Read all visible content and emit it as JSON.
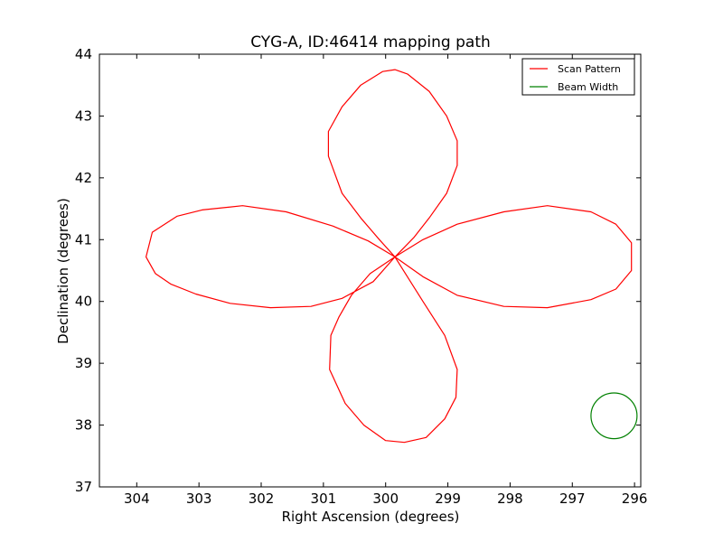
{
  "chart_data": {
    "type": "line",
    "title": "CYG-A, ID:46414 mapping path",
    "xlabel": "Right Ascension (degrees)",
    "ylabel": "Declination (degrees)",
    "xlim": [
      304.6,
      295.9
    ],
    "ylim": [
      37,
      44
    ],
    "x_reversed": true,
    "xticks": [
      304,
      303,
      302,
      301,
      300,
      299,
      298,
      297,
      296
    ],
    "yticks": [
      37,
      38,
      39,
      40,
      41,
      42,
      43,
      44
    ],
    "grid": false,
    "legend_position": "top-right",
    "series": [
      {
        "name": "Scan Pattern",
        "color": "#ff0000",
        "style": "line",
        "x": [
          299.85,
          300.28,
          300.85,
          301.6,
          302.3,
          302.95,
          303.35,
          303.75,
          303.85,
          303.7,
          303.45,
          303.05,
          302.5,
          301.85,
          301.2,
          300.7,
          300.2,
          299.85,
          299.55,
          299.3,
          299.02,
          298.85,
          298.85,
          299.02,
          299.3,
          299.65,
          299.85,
          300.05,
          300.4,
          300.7,
          300.92,
          300.92,
          300.7,
          300.4,
          300.1,
          299.85,
          299.4,
          298.85,
          298.1,
          297.4,
          296.7,
          296.3,
          296.05,
          296.05,
          296.3,
          296.7,
          297.4,
          298.1,
          298.85,
          299.4,
          299.85,
          300.25,
          300.55,
          300.75,
          300.88,
          300.9,
          300.65,
          300.35,
          300.0,
          299.7,
          299.35,
          299.05,
          298.87,
          298.85,
          299.05,
          299.4,
          299.85
        ],
        "y": [
          40.72,
          40.98,
          41.22,
          41.45,
          41.55,
          41.48,
          41.38,
          41.12,
          40.72,
          40.45,
          40.28,
          40.12,
          39.97,
          39.9,
          39.92,
          40.05,
          40.32,
          40.72,
          41.03,
          41.35,
          41.75,
          42.2,
          42.6,
          43.0,
          43.4,
          43.68,
          43.75,
          43.72,
          43.5,
          43.15,
          42.75,
          42.35,
          41.75,
          41.35,
          41.0,
          40.72,
          41.0,
          41.25,
          41.45,
          41.55,
          41.45,
          41.25,
          40.95,
          40.5,
          40.2,
          40.03,
          39.9,
          39.92,
          40.1,
          40.4,
          40.72,
          40.45,
          40.1,
          39.75,
          39.45,
          38.9,
          38.35,
          38.0,
          37.75,
          37.72,
          37.8,
          38.1,
          38.45,
          38.9,
          39.45,
          40.0,
          40.72
        ]
      },
      {
        "name": "Beam Width",
        "color": "#008000",
        "style": "circle",
        "center": [
          296.33,
          38.15
        ],
        "radius": 0.37
      }
    ]
  }
}
